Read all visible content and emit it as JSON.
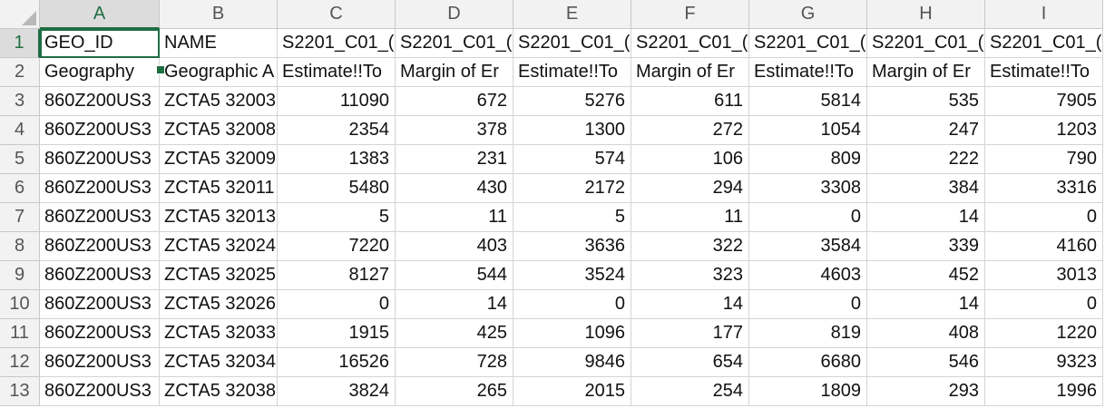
{
  "columns": [
    "A",
    "B",
    "C",
    "D",
    "E",
    "F",
    "G",
    "H",
    "I"
  ],
  "rows": [
    {
      "n": "1",
      "cells": [
        "GEO_ID",
        "NAME",
        "S2201_C01_(",
        "S2201_C01_(",
        "S2201_C01_(",
        "S2201_C01_(",
        "S2201_C01_(",
        "S2201_C01_(",
        "S2201_C01_("
      ]
    },
    {
      "n": "2",
      "cells": [
        "Geography",
        "Geographic A",
        "Estimate!!To",
        "Margin of Er",
        "Estimate!!To",
        "Margin of Er",
        "Estimate!!To",
        "Margin of Er",
        "Estimate!!To"
      ]
    },
    {
      "n": "3",
      "cells": [
        "860Z200US3",
        "ZCTA5 32003",
        "11090",
        "672",
        "5276",
        "611",
        "5814",
        "535",
        "7905"
      ]
    },
    {
      "n": "4",
      "cells": [
        "860Z200US3",
        "ZCTA5 32008",
        "2354",
        "378",
        "1300",
        "272",
        "1054",
        "247",
        "1203"
      ]
    },
    {
      "n": "5",
      "cells": [
        "860Z200US3",
        "ZCTA5 32009",
        "1383",
        "231",
        "574",
        "106",
        "809",
        "222",
        "790"
      ]
    },
    {
      "n": "6",
      "cells": [
        "860Z200US3",
        "ZCTA5 32011",
        "5480",
        "430",
        "2172",
        "294",
        "3308",
        "384",
        "3316"
      ]
    },
    {
      "n": "7",
      "cells": [
        "860Z200US3",
        "ZCTA5 32013",
        "5",
        "11",
        "5",
        "11",
        "0",
        "14",
        "0"
      ]
    },
    {
      "n": "8",
      "cells": [
        "860Z200US3",
        "ZCTA5 32024",
        "7220",
        "403",
        "3636",
        "322",
        "3584",
        "339",
        "4160"
      ]
    },
    {
      "n": "9",
      "cells": [
        "860Z200US3",
        "ZCTA5 32025",
        "8127",
        "544",
        "3524",
        "323",
        "4603",
        "452",
        "3013"
      ]
    },
    {
      "n": "10",
      "cells": [
        "860Z200US3",
        "ZCTA5 32026",
        "0",
        "14",
        "0",
        "14",
        "0",
        "14",
        "0"
      ]
    },
    {
      "n": "11",
      "cells": [
        "860Z200US3",
        "ZCTA5 32033",
        "1915",
        "425",
        "1096",
        "177",
        "819",
        "408",
        "1220"
      ]
    },
    {
      "n": "12",
      "cells": [
        "860Z200US3",
        "ZCTA5 32034",
        "16526",
        "728",
        "9846",
        "654",
        "6680",
        "546",
        "9323"
      ]
    },
    {
      "n": "13",
      "cells": [
        "860Z200US3",
        "ZCTA5 32038",
        "3824",
        "265",
        "2015",
        "254",
        "1809",
        "293",
        "1996"
      ]
    }
  ],
  "colors": {
    "accent": "#1e6e42",
    "header_bg": "#f2f2f2",
    "gridline": "#d4d4d4"
  }
}
